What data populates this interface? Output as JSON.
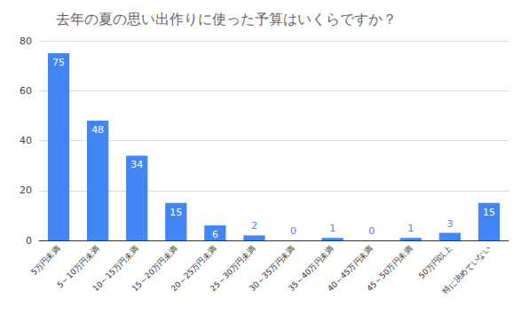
{
  "chart_data": {
    "type": "bar",
    "title": "去年の夏の思い出作りに使った予算はいくらですか？",
    "categories": [
      "5万円未満",
      "5～10万円未満",
      "10～15万円未満",
      "15～20万円未満",
      "20～25万円未満",
      "25～30万円未満",
      "30～35万円未満",
      "35～40万円未満",
      "40～45万円未満",
      "45～50万円未満",
      "50万円以上",
      "特に決めていない"
    ],
    "values": [
      75,
      48,
      34,
      15,
      6,
      2,
      0,
      1,
      0,
      1,
      3,
      15
    ],
    "color": "#4285f4",
    "ylim": [
      0,
      80
    ],
    "yticks": [
      0,
      20,
      40,
      60,
      80
    ],
    "grid": true,
    "data_labels": true
  }
}
